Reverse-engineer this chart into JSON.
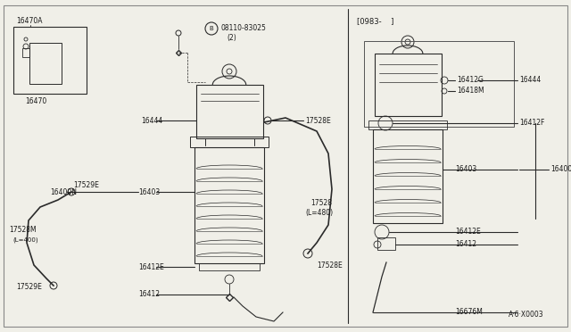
{
  "bg_color": "#f0efe8",
  "line_color": "#2a2a2a",
  "text_color": "#1a1a1a",
  "watermark": "A·6·X0003",
  "figw": 6.4,
  "figh": 3.72,
  "dpi": 100,
  "xlim": [
    0,
    640
  ],
  "ylim": [
    0,
    372
  ]
}
